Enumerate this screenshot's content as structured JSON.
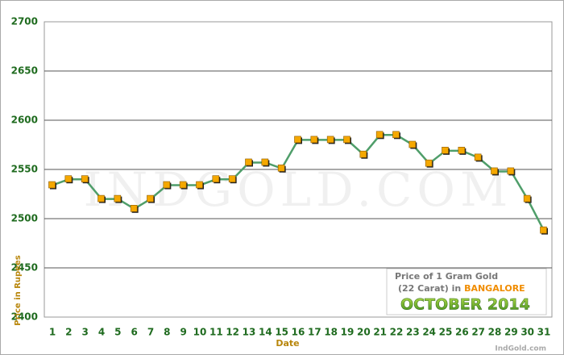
{
  "chart_data": {
    "type": "line",
    "xlabel": "Date",
    "ylabel": "Price in Rupees",
    "categories": [
      "1",
      "2",
      "3",
      "4",
      "5",
      "6",
      "7",
      "8",
      "9",
      "10",
      "11",
      "12",
      "13",
      "14",
      "15",
      "16",
      "17",
      "18",
      "19",
      "20",
      "21",
      "22",
      "23",
      "24",
      "25",
      "26",
      "27",
      "28",
      "29",
      "30",
      "31"
    ],
    "values": [
      2534,
      2540,
      2540,
      2520,
      2520,
      2510,
      2520,
      2534,
      2534,
      2534,
      2540,
      2540,
      2557,
      2557,
      2551,
      2580,
      2580,
      2580,
      2580,
      2565,
      2585,
      2585,
      2575,
      2556,
      2569,
      2569,
      2562,
      2548,
      2548,
      2520,
      2488
    ],
    "color": "#4f9e6a",
    "marker_color": "#f5a800",
    "ylim": [
      2400,
      2700
    ],
    "yticks": [
      2400,
      2450,
      2500,
      2550,
      2600,
      2650,
      2700
    ],
    "grid": true,
    "watermark": "INDGOLD.COM",
    "caption": {
      "line1": "Price of 1 Gram Gold",
      "line2": "(22 Carat) in",
      "city": "BANGALORE",
      "period": "OCTOBER 2014"
    },
    "credit": "IndGold.com"
  }
}
